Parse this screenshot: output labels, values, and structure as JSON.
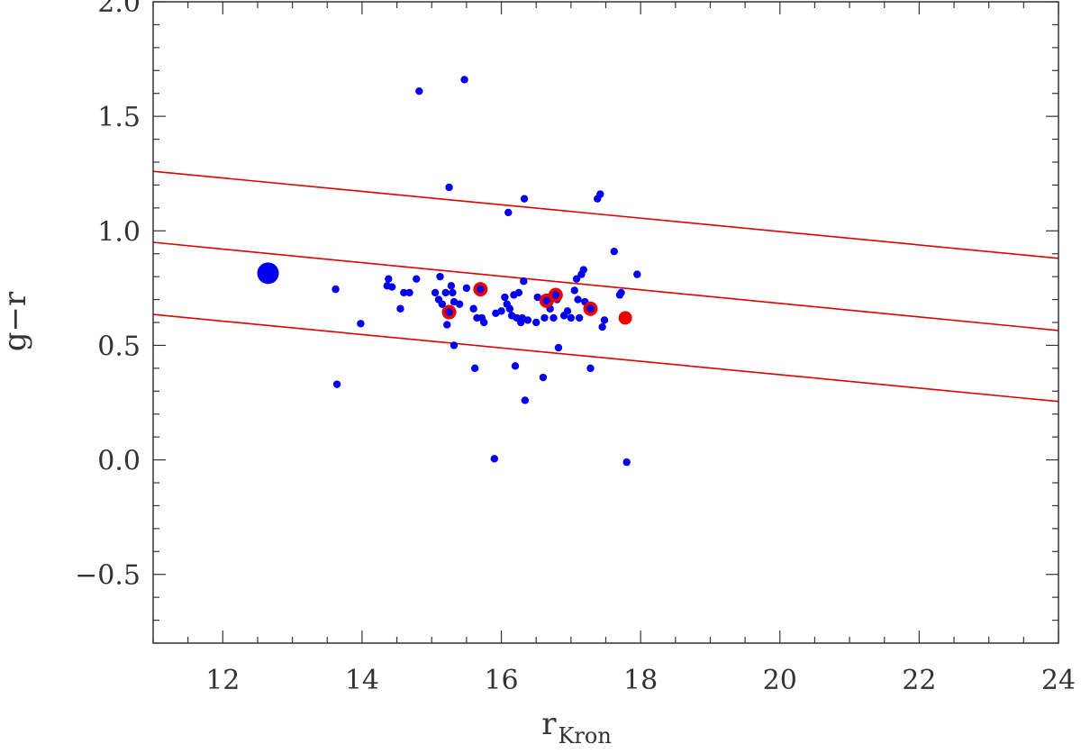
{
  "chart_data": {
    "type": "scatter",
    "xlabel": "r",
    "xlabel_subscript": "Kron",
    "ylabel": "g−r",
    "xlim": [
      11,
      24
    ],
    "ylim": [
      -0.8,
      2.0
    ],
    "xticks": [
      12,
      14,
      16,
      18,
      20,
      22,
      24
    ],
    "yticks": [
      -0.5,
      0.0,
      0.5,
      1.0,
      1.5,
      2.0
    ],
    "xtick_labels": [
      "12",
      "14",
      "16",
      "18",
      "20",
      "22",
      "24"
    ],
    "ytick_labels": [
      "−0.5",
      "0.0",
      "0.5",
      "1.0",
      "1.5",
      "2.0"
    ],
    "grid": false,
    "colors": {
      "points": "#0000ee",
      "highlight": "#ee0000",
      "lines": "#dd0000",
      "axis": "#333333"
    },
    "lines": [
      {
        "x": [
          11,
          24
        ],
        "y": [
          1.26,
          0.88
        ]
      },
      {
        "x": [
          11,
          24
        ],
        "y": [
          0.95,
          0.565
        ]
      },
      {
        "x": [
          11,
          24
        ],
        "y": [
          0.635,
          0.255
        ]
      }
    ],
    "points": [
      [
        13.62,
        0.745
      ],
      [
        13.64,
        0.33
      ],
      [
        13.98,
        0.595
      ],
      [
        14.38,
        0.79
      ],
      [
        14.36,
        0.76
      ],
      [
        14.43,
        0.755
      ],
      [
        14.55,
        0.66
      ],
      [
        14.6,
        0.73
      ],
      [
        14.68,
        0.73
      ],
      [
        14.78,
        0.79
      ],
      [
        14.82,
        1.61
      ],
      [
        15.05,
        0.73
      ],
      [
        15.1,
        0.7
      ],
      [
        15.12,
        0.8
      ],
      [
        15.15,
        0.68
      ],
      [
        15.2,
        0.73
      ],
      [
        15.22,
        0.59
      ],
      [
        15.25,
        1.19
      ],
      [
        15.28,
        0.76
      ],
      [
        15.3,
        0.73
      ],
      [
        15.32,
        0.69
      ],
      [
        15.32,
        0.5
      ],
      [
        15.4,
        0.68
      ],
      [
        15.47,
        1.66
      ],
      [
        15.5,
        0.75
      ],
      [
        15.6,
        0.66
      ],
      [
        15.62,
        0.4
      ],
      [
        15.65,
        0.62
      ],
      [
        15.72,
        0.62
      ],
      [
        15.75,
        0.6
      ],
      [
        15.9,
        0.005
      ],
      [
        15.92,
        0.64
      ],
      [
        16.0,
        0.65
      ],
      [
        16.05,
        0.71
      ],
      [
        16.08,
        0.68
      ],
      [
        16.1,
        1.08
      ],
      [
        16.12,
        0.66
      ],
      [
        16.15,
        0.63
      ],
      [
        16.18,
        0.72
      ],
      [
        16.2,
        0.41
      ],
      [
        16.22,
        0.62
      ],
      [
        16.25,
        0.73
      ],
      [
        16.28,
        0.6
      ],
      [
        16.3,
        0.62
      ],
      [
        16.32,
        0.78
      ],
      [
        16.33,
        1.14
      ],
      [
        16.34,
        0.26
      ],
      [
        16.38,
        0.61
      ],
      [
        16.5,
        0.6
      ],
      [
        16.52,
        0.71
      ],
      [
        16.6,
        0.36
      ],
      [
        16.62,
        0.62
      ],
      [
        16.7,
        0.66
      ],
      [
        16.75,
        0.62
      ],
      [
        16.8,
        0.7
      ],
      [
        16.82,
        0.49
      ],
      [
        16.9,
        0.63
      ],
      [
        16.95,
        0.65
      ],
      [
        17.0,
        0.62
      ],
      [
        17.05,
        0.74
      ],
      [
        17.08,
        0.79
      ],
      [
        17.1,
        0.7
      ],
      [
        17.12,
        0.62
      ],
      [
        17.15,
        0.81
      ],
      [
        17.18,
        0.83
      ],
      [
        17.2,
        0.69
      ],
      [
        17.28,
        0.4
      ],
      [
        17.38,
        1.14
      ],
      [
        17.42,
        1.16
      ],
      [
        17.45,
        0.58
      ],
      [
        17.48,
        0.61
      ],
      [
        17.62,
        0.91
      ],
      [
        17.7,
        0.72
      ],
      [
        17.72,
        0.73
      ],
      [
        17.8,
        -0.01
      ],
      [
        17.95,
        0.81
      ]
    ],
    "highlighted_points": [
      [
        15.25,
        0.645
      ],
      [
        15.7,
        0.745
      ],
      [
        16.65,
        0.695
      ],
      [
        16.78,
        0.72
      ],
      [
        17.28,
        0.66
      ]
    ],
    "solid_red_points": [
      [
        17.78,
        0.62
      ]
    ],
    "large_point": [
      12.65,
      0.815
    ]
  }
}
